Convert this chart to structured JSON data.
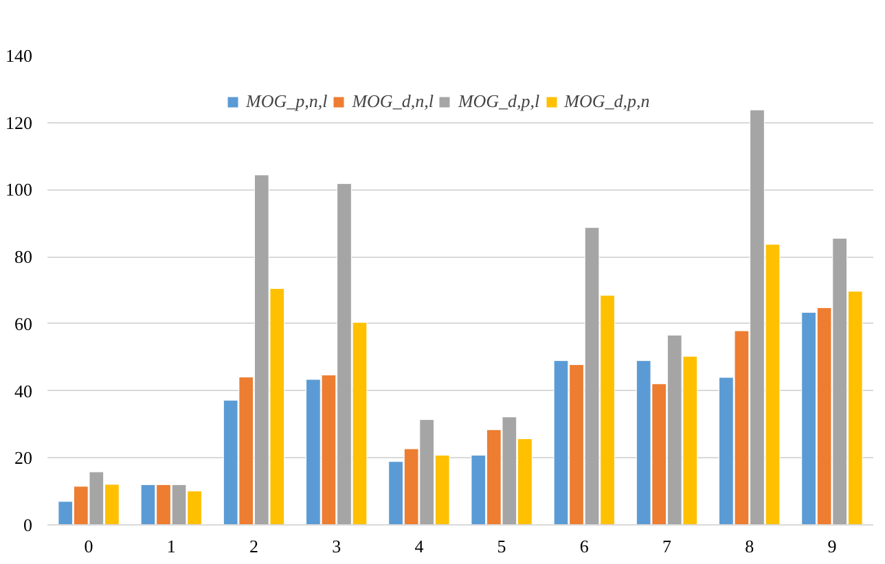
{
  "chart_data": {
    "type": "bar",
    "categories": [
      "0",
      "1",
      "2",
      "3",
      "4",
      "5",
      "6",
      "7",
      "8",
      "9"
    ],
    "series": [
      {
        "name": "MOG_p,n,l",
        "color": "#5b9bd5",
        "values": [
          7.0,
          12.0,
          37.2,
          43.4,
          18.9,
          20.8,
          49.0,
          49.0,
          44.0,
          63.4
        ]
      },
      {
        "name": "MOG_d,n,l",
        "color": "#ed7d31",
        "values": [
          11.5,
          12.0,
          44.1,
          44.7,
          22.7,
          28.4,
          47.8,
          42.1,
          57.9,
          64.8
        ]
      },
      {
        "name": "MOG_d,p,l",
        "color": "#a5a5a5",
        "values": [
          15.8,
          12.0,
          104.4,
          101.8,
          31.4,
          32.2,
          88.7,
          56.6,
          123.8,
          85.5
        ]
      },
      {
        "name": "MOG_d,p,n",
        "color": "#ffc000",
        "values": [
          12.1,
          10.1,
          70.5,
          60.4,
          20.8,
          25.7,
          68.5,
          50.3,
          83.7,
          69.7
        ]
      }
    ],
    "ylim": [
      0,
      140
    ],
    "yticks": [
      0,
      20,
      40,
      60,
      80,
      100,
      120,
      140
    ],
    "grid": "y",
    "legend": "top"
  }
}
